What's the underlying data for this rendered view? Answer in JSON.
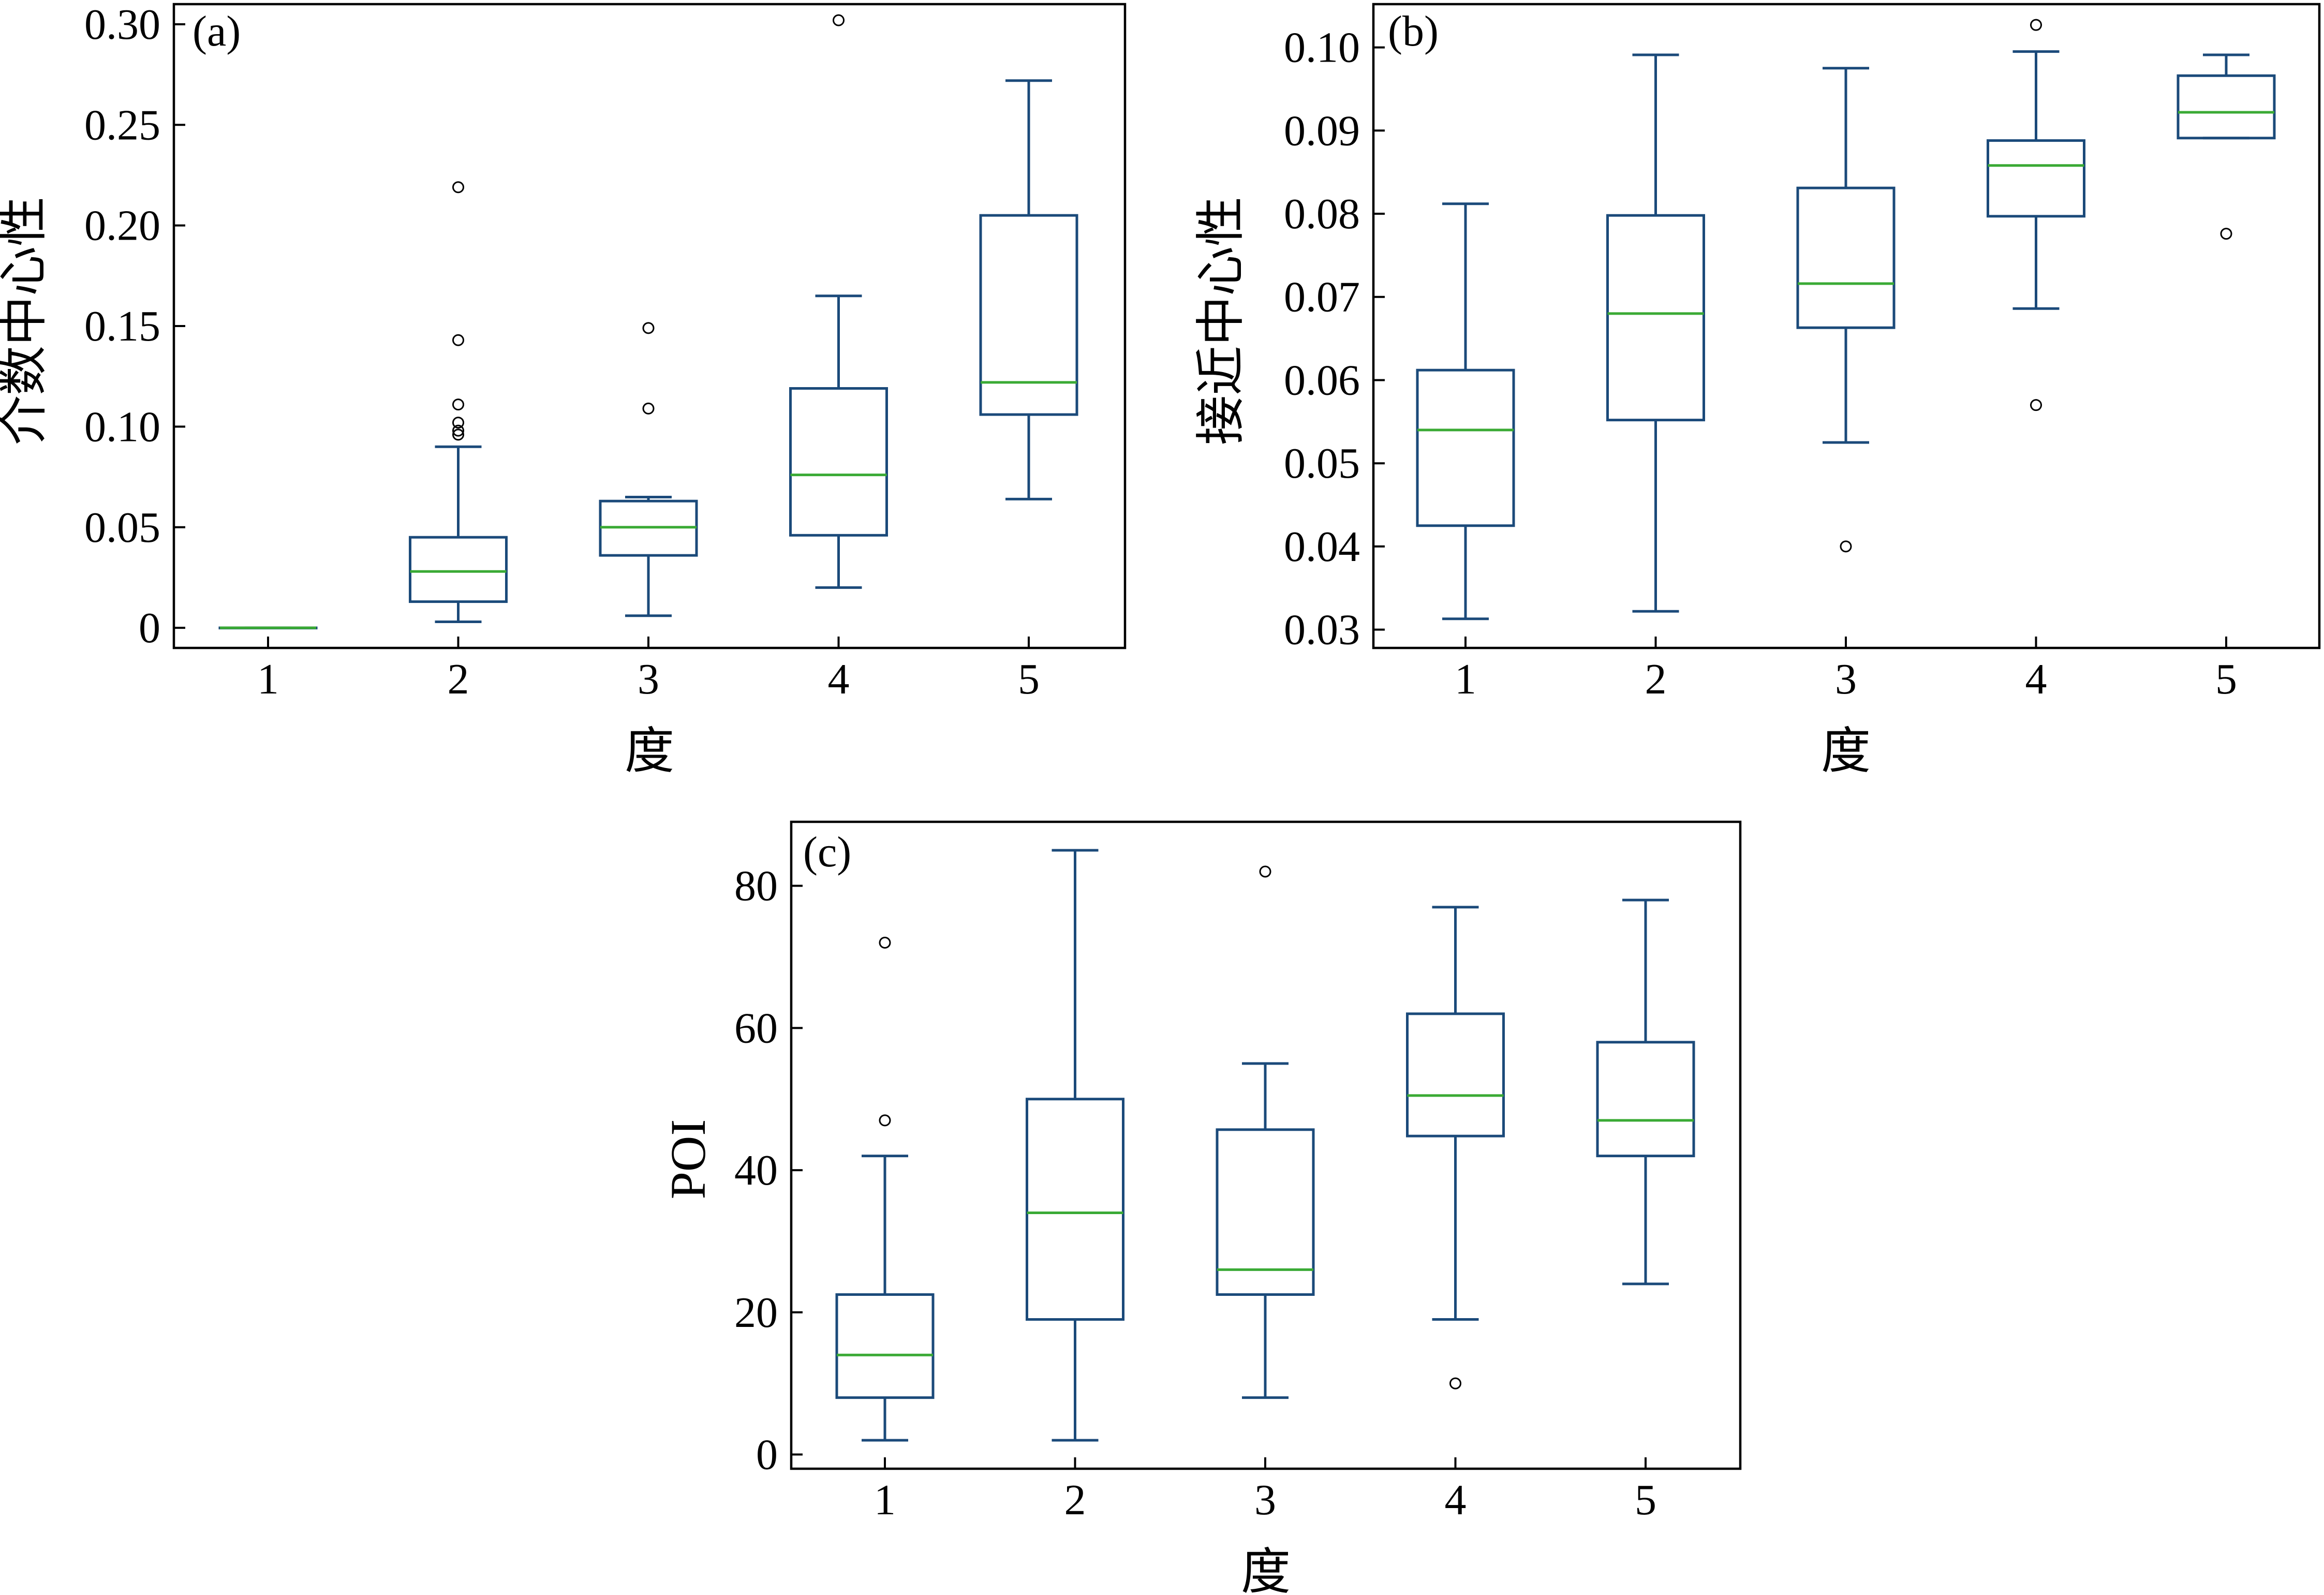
{
  "colors": {
    "box": "#1b4a7a",
    "median": "#3aaa35",
    "frame": "#000000",
    "flier": "#000000"
  },
  "chart_data": [
    {
      "type": "box",
      "panel_label": "(a)",
      "xlabel": "度",
      "ylabel": "介数中心性",
      "categories": [
        "1",
        "2",
        "3",
        "4",
        "5"
      ],
      "ylim": [
        -0.01,
        0.31
      ],
      "yticks": [
        0,
        0.05,
        0.1,
        0.15,
        0.2,
        0.25,
        0.3
      ],
      "ytick_labels": [
        "0",
        "0.05",
        "0.10",
        "0.15",
        "0.20",
        "0.25",
        "0.30"
      ],
      "grid": false,
      "boxes": [
        {
          "category": "1",
          "whisker_low": 0,
          "q1": 0,
          "median": 0,
          "q3": 0,
          "whisker_high": 0,
          "outliers": []
        },
        {
          "category": "2",
          "whisker_low": 0.003,
          "q1": 0.013,
          "median": 0.028,
          "q3": 0.045,
          "whisker_high": 0.09,
          "outliers": [
            0.096,
            0.098,
            0.102,
            0.111,
            0.143,
            0.219
          ]
        },
        {
          "category": "3",
          "whisker_low": 0.006,
          "q1": 0.036,
          "median": 0.05,
          "q3": 0.063,
          "whisker_high": 0.065,
          "outliers": [
            0.109,
            0.149
          ]
        },
        {
          "category": "4",
          "whisker_low": 0.02,
          "q1": 0.046,
          "median": 0.076,
          "q3": 0.119,
          "whisker_high": 0.165,
          "outliers": [
            0.302
          ]
        },
        {
          "category": "5",
          "whisker_low": 0.064,
          "q1": 0.106,
          "median": 0.122,
          "q3": 0.205,
          "whisker_high": 0.272,
          "outliers": []
        }
      ]
    },
    {
      "type": "box",
      "panel_label": "(b)",
      "xlabel": "度",
      "ylabel": "接近中心性",
      "categories": [
        "1",
        "2",
        "3",
        "4",
        "5"
      ],
      "ylim": [
        0.0278,
        0.1052
      ],
      "yticks": [
        0.03,
        0.04,
        0.05,
        0.06,
        0.07,
        0.08,
        0.09,
        0.1
      ],
      "ytick_labels": [
        "0.03",
        "0.04",
        "0.05",
        "0.06",
        "0.07",
        "0.08",
        "0.09",
        "0.10"
      ],
      "grid": false,
      "boxes": [
        {
          "category": "1",
          "whisker_low": 0.0313,
          "q1": 0.0425,
          "median": 0.054,
          "q3": 0.0612,
          "whisker_high": 0.0812,
          "outliers": []
        },
        {
          "category": "2",
          "whisker_low": 0.0322,
          "q1": 0.0552,
          "median": 0.068,
          "q3": 0.0798,
          "whisker_high": 0.0991,
          "outliers": []
        },
        {
          "category": "3",
          "whisker_low": 0.0525,
          "q1": 0.0663,
          "median": 0.0716,
          "q3": 0.0831,
          "whisker_high": 0.0975,
          "outliers": [
            0.04
          ]
        },
        {
          "category": "4",
          "whisker_low": 0.0686,
          "q1": 0.0797,
          "median": 0.0858,
          "q3": 0.0888,
          "whisker_high": 0.0995,
          "outliers": [
            0.057,
            0.1027
          ]
        },
        {
          "category": "5",
          "whisker_low": 0.0891,
          "q1": 0.0891,
          "median": 0.0922,
          "q3": 0.0966,
          "whisker_high": 0.0991,
          "outliers": [
            0.0776
          ]
        }
      ]
    },
    {
      "type": "box",
      "panel_label": "(c)",
      "xlabel": "度",
      "ylabel": "POI",
      "categories": [
        "1",
        "2",
        "3",
        "4",
        "5"
      ],
      "ylim": [
        -2,
        89
      ],
      "yticks": [
        0,
        20,
        40,
        60,
        80
      ],
      "ytick_labels": [
        "0",
        "20",
        "40",
        "60",
        "80"
      ],
      "grid": false,
      "boxes": [
        {
          "category": "1",
          "whisker_low": 2,
          "q1": 8,
          "median": 14,
          "q3": 22.5,
          "whisker_high": 42,
          "outliers": [
            47,
            72
          ]
        },
        {
          "category": "2",
          "whisker_low": 2,
          "q1": 19,
          "median": 34,
          "q3": 50,
          "whisker_high": 85,
          "outliers": []
        },
        {
          "category": "3",
          "whisker_low": 8,
          "q1": 22.5,
          "median": 26,
          "q3": 45.7,
          "whisker_high": 55,
          "outliers": [
            82
          ]
        },
        {
          "category": "4",
          "whisker_low": 19,
          "q1": 44.8,
          "median": 50.5,
          "q3": 62,
          "whisker_high": 77,
          "outliers": [
            10
          ]
        },
        {
          "category": "5",
          "whisker_low": 24,
          "q1": 42,
          "median": 47,
          "q3": 58,
          "whisker_high": 78,
          "outliers": []
        }
      ]
    }
  ]
}
